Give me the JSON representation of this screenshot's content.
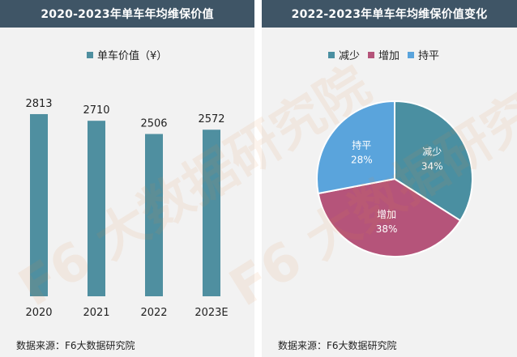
{
  "left_panel": {
    "title": "2020-2023年单车年均维保价值",
    "source": "数据来源：F6大数据研究院"
  },
  "right_panel": {
    "title": "2022-2023年单车年均维保价值变化",
    "source": "数据来源：F6大数据研究院"
  },
  "watermark": "F6 大数据研究院",
  "colors": {
    "header_bg": "#3f5566",
    "bar": "#4f8fa0",
    "decrease": "#4a8fa1",
    "increase": "#b5547a",
    "flat": "#5aa4dc"
  },
  "chart_data": [
    {
      "type": "bar",
      "title": "2020-2023年单车年均维保价值",
      "categories": [
        "2020",
        "2021",
        "2022",
        "2023E"
      ],
      "series": [
        {
          "name": "单车价值（¥）",
          "values": [
            2813,
            2710,
            2506,
            2572
          ]
        }
      ],
      "ylim": [
        0,
        3400
      ],
      "grid": false,
      "legend": "top-center"
    },
    {
      "type": "pie",
      "title": "2022-2023年单车年均维保价值变化",
      "slices": [
        {
          "name": "减少",
          "value": 34,
          "label": "34%"
        },
        {
          "name": "增加",
          "value": 38,
          "label": "38%"
        },
        {
          "name": "持平",
          "value": 28,
          "label": "28%"
        }
      ],
      "legend": "top-center"
    }
  ]
}
